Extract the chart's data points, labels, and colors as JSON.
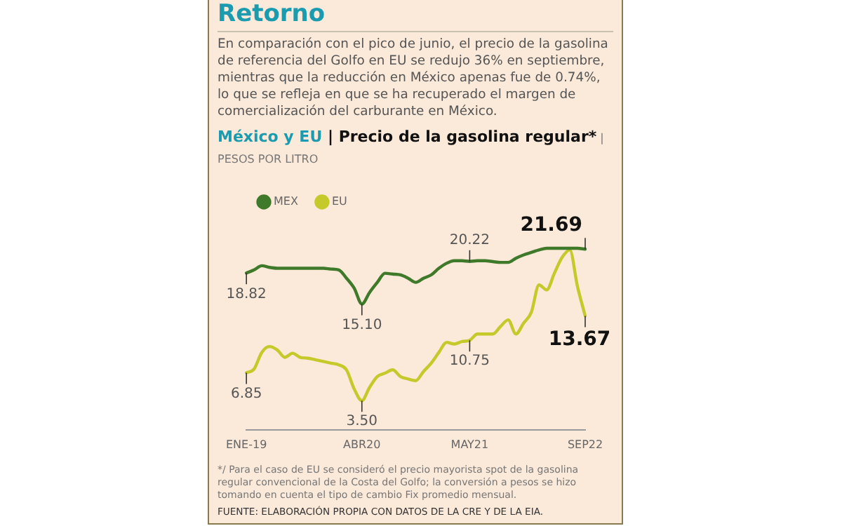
{
  "chart_data": {
    "type": "line",
    "title": "Retorno",
    "subtitle": "En comparación con el pico de junio, el precio de la gasolina de referencia del Golfo en EU se redujo 36% en septiembre, mientras que la reducción en México apenas fue de 0.74%, lo que se refleja en que se ha recuperado el margen de comercialización del carburante en México.",
    "annotations": [
      "México y EU | Precio de la gasolina regular* | PESOS POR LITRO",
      "*/ Para el caso de EU se consideró el precio mayorista spot de la gasolina regular convencional de la Costa del Golfo; la conversión a pesos se hizo tomando en cuenta el tipo de cambio Fix promedio mensual.",
      "FUENTE: ELABORACIÓN PROPIA CON DATOS DE LA CRE Y DE LA EIA."
    ],
    "categories": [
      "ENE-19",
      null,
      null,
      null,
      null,
      null,
      null,
      null,
      null,
      null,
      null,
      null,
      null,
      null,
      null,
      "ABR20",
      null,
      null,
      null,
      null,
      null,
      null,
      null,
      null,
      null,
      null,
      null,
      null,
      null,
      "MAY21",
      null,
      null,
      null,
      null,
      null,
      null,
      null,
      null,
      null,
      null,
      null,
      null,
      null,
      null,
      "SEP22"
    ],
    "grid": false,
    "legend": "top left",
    "tick_labels": "x",
    "marker": "none",
    "line_style": "solid",
    "series": [
      {
        "name": "MEX",
        "color": "#3f7a2a",
        "values": [
          18.82,
          19.2,
          19.7,
          19.5,
          19.4,
          19.4,
          19.4,
          19.4,
          19.4,
          19.4,
          19.4,
          19.3,
          19.2,
          18.2,
          17.0,
          15.1,
          16.5,
          17.7,
          18.8,
          18.7,
          18.6,
          18.2,
          17.7,
          18.2,
          18.6,
          19.4,
          20.0,
          20.3,
          20.3,
          20.22,
          20.3,
          20.3,
          20.2,
          20.1,
          20.1,
          20.6,
          21.0,
          21.3,
          21.6,
          21.8,
          21.8,
          21.8,
          21.8,
          21.8,
          21.69
        ],
        "value_labels": [
          "18.82",
          null,
          null,
          null,
          null,
          null,
          null,
          null,
          null,
          null,
          null,
          null,
          null,
          null,
          null,
          "15.10",
          null,
          null,
          null,
          null,
          null,
          null,
          null,
          null,
          null,
          null,
          null,
          null,
          null,
          "20.22",
          null,
          null,
          null,
          null,
          null,
          null,
          null,
          null,
          null,
          null,
          null,
          null,
          null,
          null,
          "21.69"
        ]
      },
      {
        "name": "EU",
        "color": "#c5c92a",
        "values": [
          6.85,
          7.3,
          9.3,
          10.0,
          9.6,
          8.7,
          9.2,
          8.7,
          8.6,
          8.4,
          8.2,
          8.0,
          7.8,
          7.2,
          4.9,
          3.5,
          5.1,
          6.4,
          6.8,
          7.2,
          6.4,
          6.1,
          5.9,
          7.0,
          8.0,
          9.3,
          10.5,
          10.3,
          10.6,
          10.75,
          11.5,
          11.5,
          11.5,
          12.4,
          13.2,
          11.5,
          12.8,
          14.1,
          17.4,
          16.8,
          18.8,
          20.7,
          21.6,
          17.2,
          13.67
        ],
        "value_labels": [
          "6.85",
          null,
          null,
          null,
          null,
          null,
          null,
          null,
          null,
          null,
          null,
          null,
          null,
          null,
          null,
          "3.50",
          null,
          null,
          null,
          null,
          null,
          null,
          null,
          null,
          null,
          null,
          null,
          null,
          null,
          "10.75",
          null,
          null,
          null,
          null,
          null,
          null,
          null,
          null,
          null,
          null,
          null,
          null,
          null,
          null,
          "13.67"
        ]
      }
    ]
  }
}
